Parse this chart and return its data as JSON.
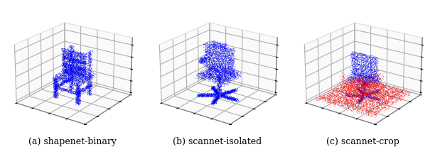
{
  "figsize": [
    6.12,
    2.14
  ],
  "dpi": 100,
  "captions": [
    "(a) shapenet-binary",
    "(b) scannet-isolated",
    "(c) scannet-crop"
  ],
  "caption_fontsize": 9,
  "background_color": "#ffffff",
  "blue": "#0000ee",
  "red": "#ee0000",
  "grid_color": "#aaaaaa",
  "pane_color": "#f0f0f0",
  "n_points_chair1": 8000,
  "n_points_chair2": 8000,
  "n_points_chair3_blue": 4000,
  "n_points_chair3_red": 5000,
  "seed": 42,
  "elev": 22,
  "azim": -55,
  "marker_size": 0.3
}
